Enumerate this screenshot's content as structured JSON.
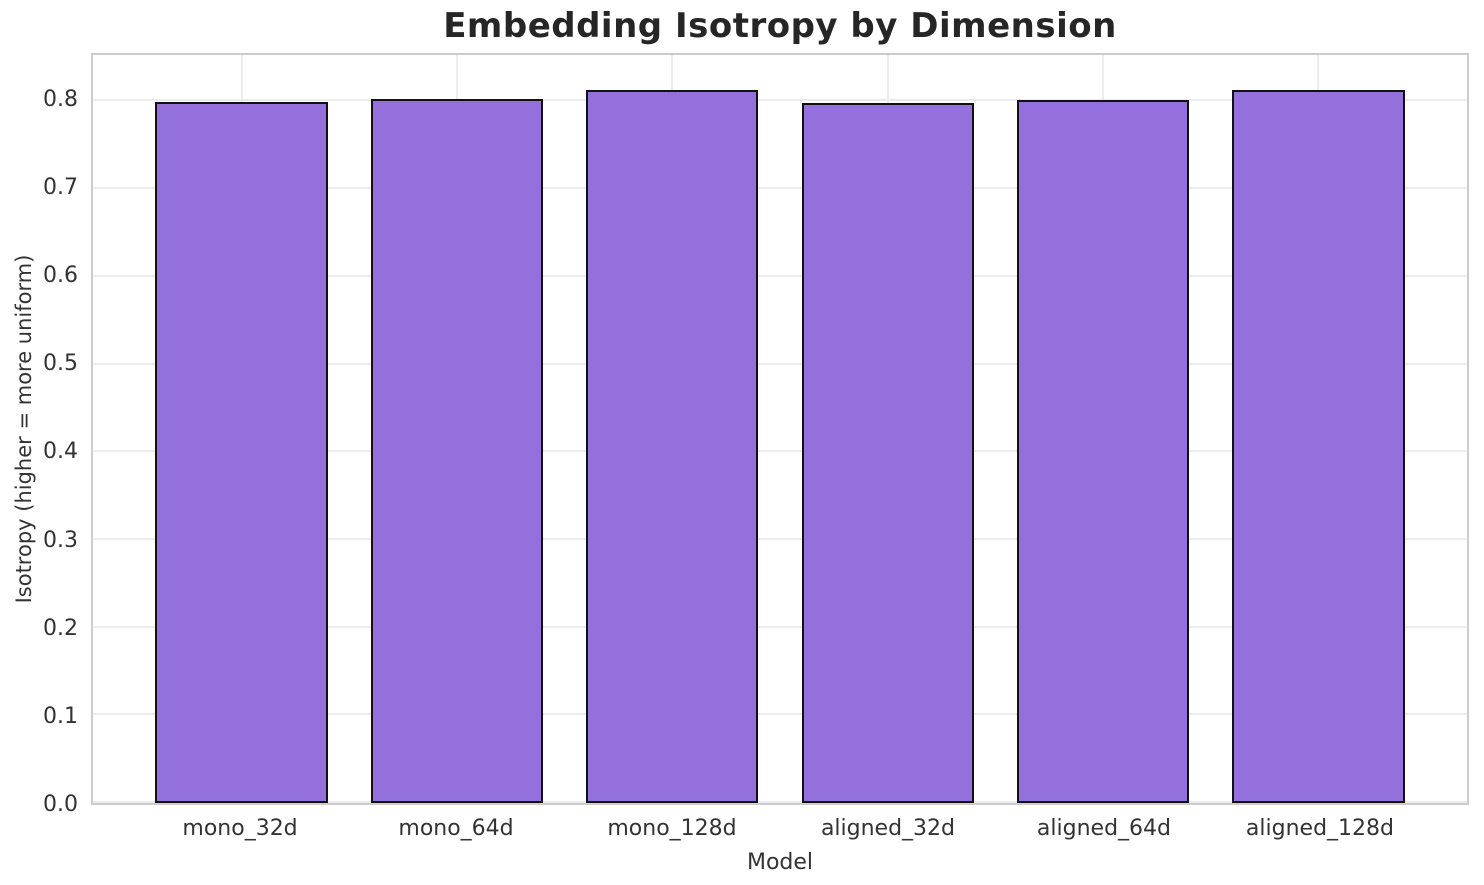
{
  "chart_data": {
    "type": "bar",
    "title": "Embedding Isotropy by Dimension",
    "xlabel": "Model",
    "ylabel": "Isotropy (higher = more uniform)",
    "categories": [
      "mono_32d",
      "mono_64d",
      "mono_128d",
      "aligned_32d",
      "aligned_64d",
      "aligned_128d"
    ],
    "values": [
      0.799,
      0.803,
      0.813,
      0.798,
      0.802,
      0.813
    ],
    "ylim": [
      0,
      0.853
    ],
    "yticks": [
      0.0,
      0.1,
      0.2,
      0.3,
      0.4,
      0.5,
      0.6,
      0.7,
      0.8
    ],
    "ytick_labels": [
      "0.0",
      "0.1",
      "0.2",
      "0.3",
      "0.4",
      "0.5",
      "0.6",
      "0.7",
      "0.8"
    ],
    "bar_width_fraction": 0.8,
    "grid": true,
    "legend_position": "none",
    "colors": {
      "bar_fill": "#9370db",
      "bar_edge": "#111111",
      "grid": "#ececec",
      "spine": "#cccccc",
      "tick_text": "#333333",
      "title_text": "#262626",
      "background": "#ffffff"
    }
  }
}
